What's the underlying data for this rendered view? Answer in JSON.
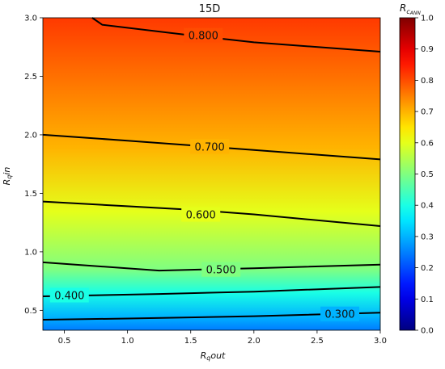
{
  "chart_data": {
    "type": "heatmap",
    "title": "15D",
    "xlabel": "R_q out",
    "ylabel": "R_q in",
    "xlim": [
      0.33,
      3.0
    ],
    "ylim": [
      0.33,
      3.0
    ],
    "x_ticks": [
      0.5,
      1.0,
      1.5,
      2.0,
      2.5,
      3.0
    ],
    "y_ticks": [
      0.5,
      1.0,
      1.5,
      2.0,
      2.5,
      3.0
    ],
    "x_tick_labels": [
      "0.5",
      "1.0",
      "1.5",
      "2.0",
      "2.5",
      "3.0"
    ],
    "y_tick_labels": [
      "0.5",
      "1.0",
      "1.5",
      "2.0",
      "2.5",
      "3.0"
    ],
    "colormap": "jet",
    "colorbar": {
      "label": "R_c ANN",
      "range": [
        0.0,
        1.0
      ],
      "ticks": [
        0.0,
        0.1,
        0.2,
        0.3,
        0.4,
        0.5,
        0.6,
        0.7,
        0.8,
        0.9,
        1.0
      ],
      "tick_labels": [
        "0.0",
        "0.1",
        "0.2",
        "0.3",
        "0.4",
        "0.5",
        "0.6",
        "0.7",
        "0.8",
        "0.9",
        "1.0"
      ]
    },
    "contours": [
      {
        "level": 0.3,
        "label": "0.300",
        "points": [
          [
            0.33,
            0.42
          ],
          [
            1.0,
            0.43
          ],
          [
            2.0,
            0.45
          ],
          [
            3.0,
            0.48
          ]
        ],
        "label_at": [
          2.68,
          0.47
        ]
      },
      {
        "level": 0.4,
        "label": "0.400",
        "points": [
          [
            0.33,
            0.62
          ],
          [
            1.25,
            0.64
          ],
          [
            2.0,
            0.66
          ],
          [
            3.0,
            0.7
          ]
        ],
        "label_at": [
          0.54,
          0.63
        ]
      },
      {
        "level": 0.5,
        "label": "0.500",
        "points": [
          [
            0.33,
            0.91
          ],
          [
            1.25,
            0.84
          ],
          [
            2.0,
            0.86
          ],
          [
            3.0,
            0.89
          ]
        ],
        "label_at": [
          1.74,
          0.85
        ]
      },
      {
        "level": 0.6,
        "label": "0.600",
        "points": [
          [
            0.33,
            1.43
          ],
          [
            1.5,
            1.36
          ],
          [
            2.0,
            1.32
          ],
          [
            3.0,
            1.22
          ]
        ],
        "label_at": [
          1.58,
          1.32
        ]
      },
      {
        "level": 0.7,
        "label": "0.700",
        "points": [
          [
            0.33,
            2.0
          ],
          [
            1.0,
            1.95
          ],
          [
            2.0,
            1.87
          ],
          [
            3.0,
            1.79
          ]
        ],
        "label_at": [
          1.65,
          1.9
        ]
      },
      {
        "level": 0.8,
        "label": "0.800",
        "points": [
          [
            0.72,
            3.0
          ],
          [
            0.8,
            2.94
          ],
          [
            1.5,
            2.85
          ],
          [
            2.0,
            2.79
          ],
          [
            3.0,
            2.71
          ]
        ],
        "label_at": [
          1.6,
          2.85
        ]
      }
    ]
  }
}
